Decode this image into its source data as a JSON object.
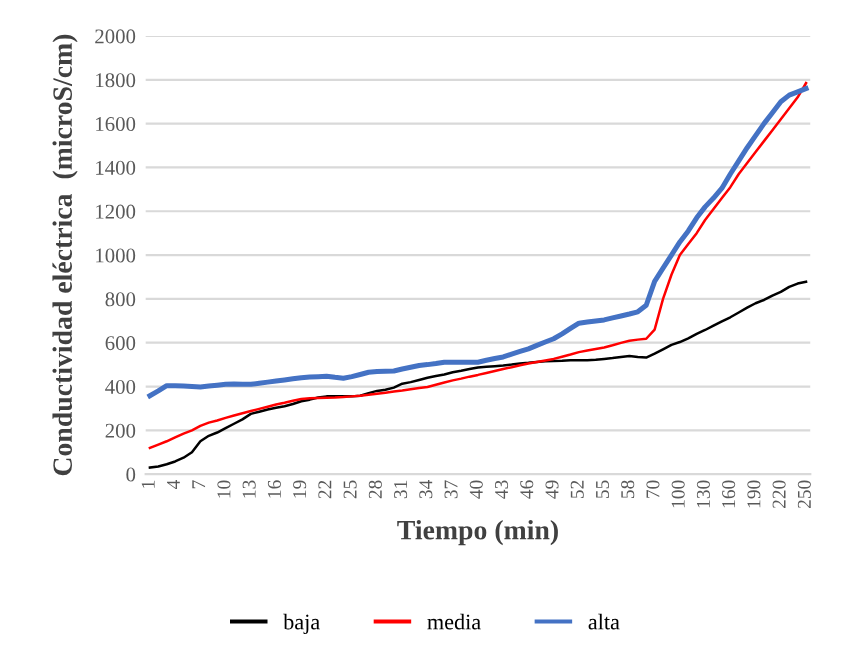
{
  "chart_data": {
    "type": "line",
    "xlabel": "Tiempo (min)",
    "ylabel": "Conductividad eléctrica  (microS/cm)",
    "categories": [
      "1",
      null,
      null,
      "4",
      null,
      null,
      "7",
      null,
      null,
      "10",
      null,
      null,
      "13",
      null,
      null,
      "16",
      null,
      null,
      "19",
      null,
      null,
      "22",
      null,
      null,
      "25",
      null,
      null,
      "28",
      null,
      null,
      "31",
      null,
      null,
      "34",
      null,
      null,
      "37",
      null,
      null,
      "40",
      null,
      null,
      "43",
      null,
      null,
      "46",
      null,
      null,
      "49",
      null,
      null,
      "52",
      null,
      null,
      "55",
      null,
      null,
      "58",
      null,
      null,
      "70",
      null,
      null,
      "100",
      null,
      null,
      "130",
      null,
      null,
      "160",
      null,
      null,
      "190",
      null,
      null,
      "220",
      null,
      null,
      "250"
    ],
    "series": [
      {
        "name": "baja",
        "color": "#000000",
        "values": [
          30,
          35,
          45,
          58,
          75,
          100,
          150,
          175,
          190,
          210,
          230,
          250,
          275,
          285,
          295,
          303,
          310,
          320,
          333,
          340,
          350,
          355,
          355,
          355,
          355,
          358,
          370,
          380,
          385,
          395,
          413,
          420,
          430,
          440,
          448,
          455,
          465,
          472,
          480,
          487,
          490,
          493,
          496,
          500,
          505,
          508,
          512,
          515,
          517,
          518,
          520,
          520,
          520,
          522,
          526,
          530,
          535,
          539,
          535,
          532,
          550,
          570,
          590,
          603,
          620,
          640,
          658,
          678,
          697,
          716,
          738,
          760,
          780,
          795,
          815,
          832,
          855,
          870,
          878
        ]
      },
      {
        "name": "media",
        "color": "#ff0000",
        "values": [
          120,
          135,
          150,
          168,
          185,
          200,
          220,
          235,
          245,
          257,
          268,
          278,
          288,
          298,
          308,
          318,
          326,
          335,
          343,
          346,
          348,
          349,
          350,
          352,
          355,
          358,
          362,
          367,
          372,
          377,
          382,
          388,
          393,
          398,
          408,
          418,
          428,
          436,
          445,
          453,
          462,
          471,
          480,
          488,
          497,
          505,
          512,
          519,
          526,
          536,
          546,
          557,
          564,
          571,
          578,
          588,
          599,
          609,
          614,
          618,
          660,
          800,
          910,
          1000,
          1050,
          1100,
          1160,
          1210,
          1260,
          1310,
          1370,
          1420,
          1470,
          1520,
          1570,
          1620,
          1670,
          1720,
          1785
        ]
      },
      {
        "name": "alta",
        "color": "#4472c4",
        "values": [
          358,
          380,
          404,
          404,
          402,
          400,
          398,
          402,
          406,
          410,
          412,
          410,
          410,
          415,
          420,
          425,
          430,
          435,
          440,
          443,
          445,
          447,
          442,
          438,
          445,
          455,
          465,
          468,
          470,
          471,
          480,
          488,
          496,
          500,
          505,
          511,
          511,
          511,
          511,
          511,
          520,
          528,
          535,
          548,
          560,
          572,
          588,
          603,
          618,
          640,
          665,
          689,
          694,
          699,
          704,
          713,
          722,
          731,
          741,
          771,
          880,
          940,
          1000,
          1060,
          1110,
          1170,
          1220,
          1260,
          1305,
          1370,
          1430,
          1490,
          1545,
          1600,
          1650,
          1700,
          1730,
          1745,
          1760
        ]
      }
    ],
    "ylim": [
      0,
      2000
    ],
    "yticks": [
      0,
      200,
      400,
      600,
      800,
      1000,
      1200,
      1400,
      1600,
      1800,
      2000
    ],
    "grid": "y",
    "legend": "bottom",
    "marker": "none",
    "line_style": "solid"
  }
}
